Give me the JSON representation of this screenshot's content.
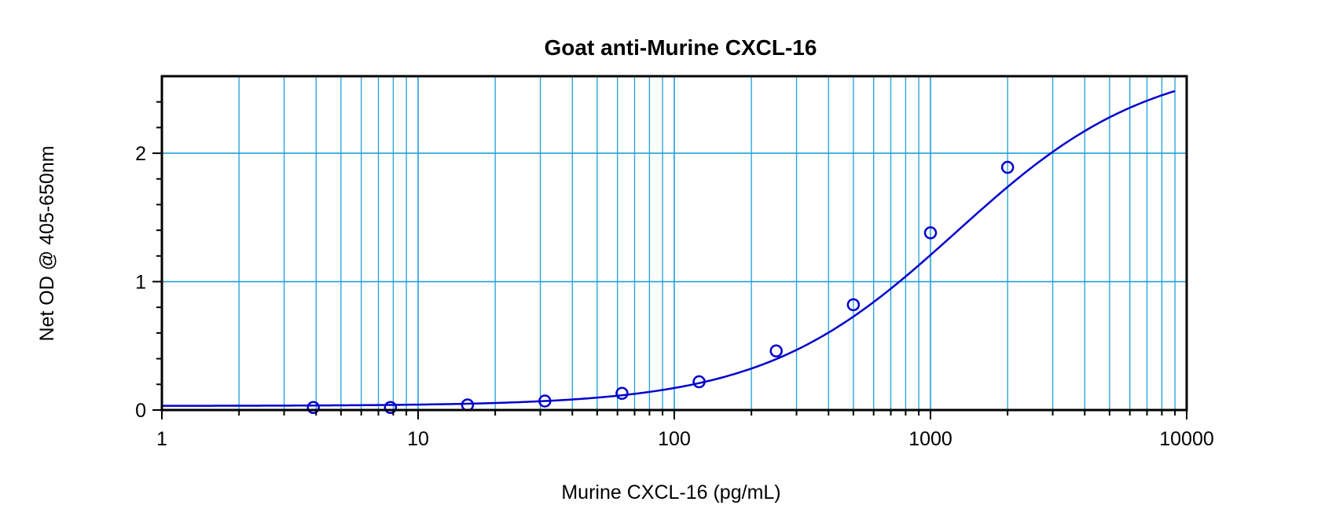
{
  "chart_data": {
    "type": "scatter",
    "title": "Goat anti-Murine CXCL-16",
    "xlabel": "Murine CXCL-16 (pg/mL)",
    "ylabel": "Net OD @ 405-650nm",
    "x_scale": "log",
    "xlim": [
      1,
      10000
    ],
    "ylim": [
      0,
      2.6
    ],
    "x_ticks": [
      1,
      10,
      100,
      1000,
      10000
    ],
    "x_tick_labels": [
      "1",
      "10",
      "100",
      "1000",
      "10000"
    ],
    "y_ticks": [
      0,
      1,
      2
    ],
    "y_tick_labels": [
      "0",
      "1",
      "2"
    ],
    "grid": true,
    "colors": {
      "grid": "#1ea0dc",
      "series": "#0000cc"
    },
    "series": [
      {
        "marker": "open-circle",
        "x": [
          3.9,
          7.8,
          15.6,
          31.25,
          62.5,
          125,
          250,
          500,
          1000,
          2000
        ],
        "y": [
          0.02,
          0.02,
          0.04,
          0.07,
          0.13,
          0.22,
          0.46,
          0.82,
          1.38,
          1.89
        ]
      }
    ],
    "fit_curve": {
      "model": "4PL",
      "bottom": 0.032,
      "top": 2.74,
      "ec50": 1260,
      "hill": 1.15,
      "x_range": [
        1,
        9000
      ]
    }
  }
}
